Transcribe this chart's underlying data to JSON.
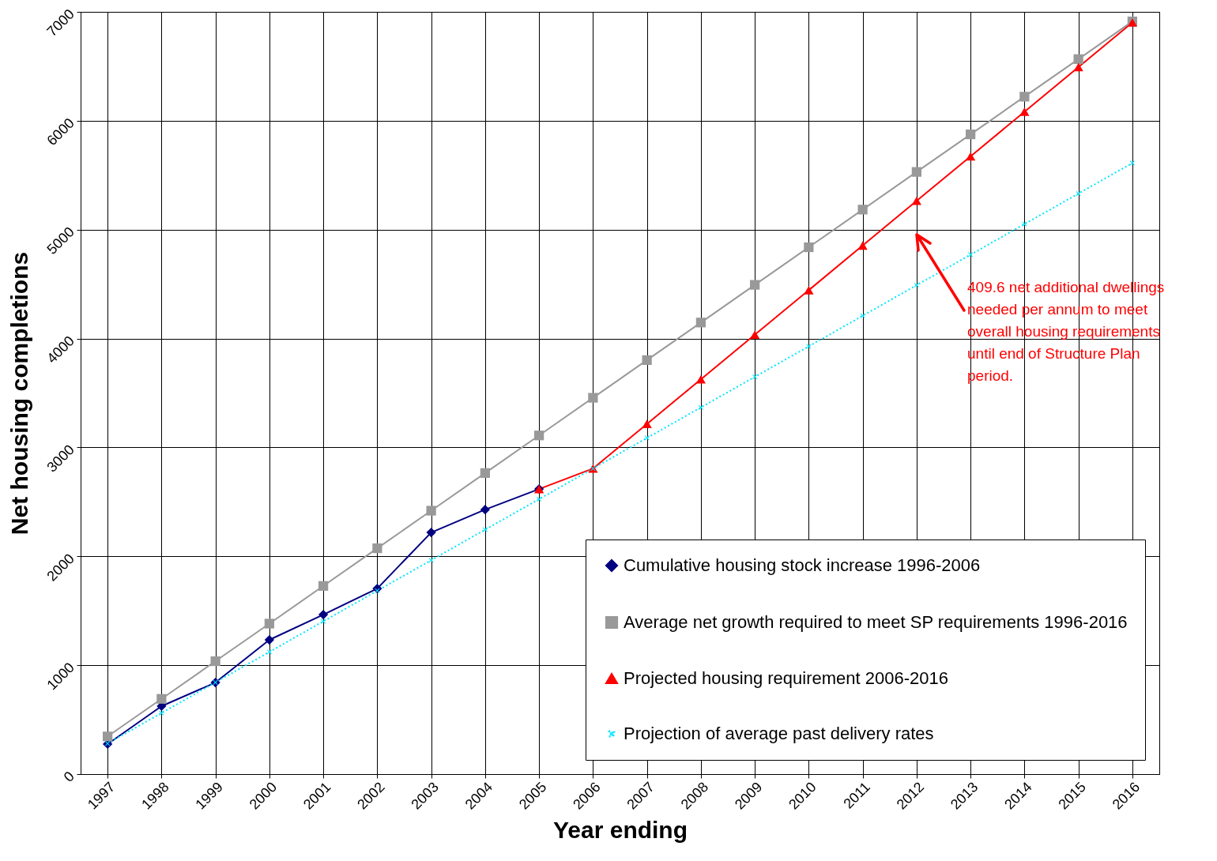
{
  "chart_data": {
    "type": "line",
    "xlabel": "Year ending",
    "ylabel": "Net housing completions",
    "categories": [
      "1997",
      "1998",
      "1999",
      "2000",
      "2001",
      "2002",
      "2003",
      "2004",
      "2005",
      "2006",
      "2007",
      "2008",
      "2009",
      "2010",
      "2011",
      "2012",
      "2013",
      "2014",
      "2015",
      "2016"
    ],
    "series": [
      {
        "name": "Cumulative housing stock increase 1996-2006",
        "color": "#000080",
        "marker": "diamond",
        "line_style": "solid",
        "values": [
          276,
          624,
          841,
          1233,
          1465,
          1704,
          2219,
          2429,
          2618,
          null,
          null,
          null,
          null,
          null,
          null,
          null,
          null,
          null,
          null,
          null
        ]
      },
      {
        "name": "Average net growth required to meet SP requirements 1996-2016",
        "color": "#999999",
        "marker": "square",
        "line_style": "solid",
        "values": [
          346,
          691,
          1037,
          1382,
          1728,
          2074,
          2419,
          2765,
          3110,
          3456,
          3802,
          4147,
          4493,
          4838,
          5184,
          5530,
          5875,
          6221,
          6566,
          6912
        ]
      },
      {
        "name": "Projected housing requirement 2006-2016",
        "color": "#ff0000",
        "marker": "triangle",
        "line_style": "solid",
        "values": [
          null,
          null,
          null,
          null,
          null,
          null,
          null,
          null,
          2618,
          2806,
          3216,
          3625,
          4035,
          4444,
          4854,
          5264,
          5673,
          6083,
          6492,
          6902
        ]
      },
      {
        "name": "Projection of average past delivery rates",
        "color": "#00e5ff",
        "marker": "cross",
        "line_style": "dotted",
        "values": [
          281,
          561,
          842,
          1122,
          1403,
          1684,
          1964,
          2245,
          2525,
          2806,
          3087,
          3367,
          3648,
          3928,
          4209,
          4490,
          4770,
          5051,
          5331,
          5612
        ]
      }
    ],
    "ylim": [
      0,
      7000
    ],
    "yticks": [
      0,
      1000,
      2000,
      3000,
      4000,
      5000,
      6000,
      7000
    ],
    "grid": true,
    "legend": "bottom right",
    "annotations": [
      "409.6 net additional dwellings needed per annum to meet overall housing requirements until end of Structure Plan period."
    ]
  }
}
